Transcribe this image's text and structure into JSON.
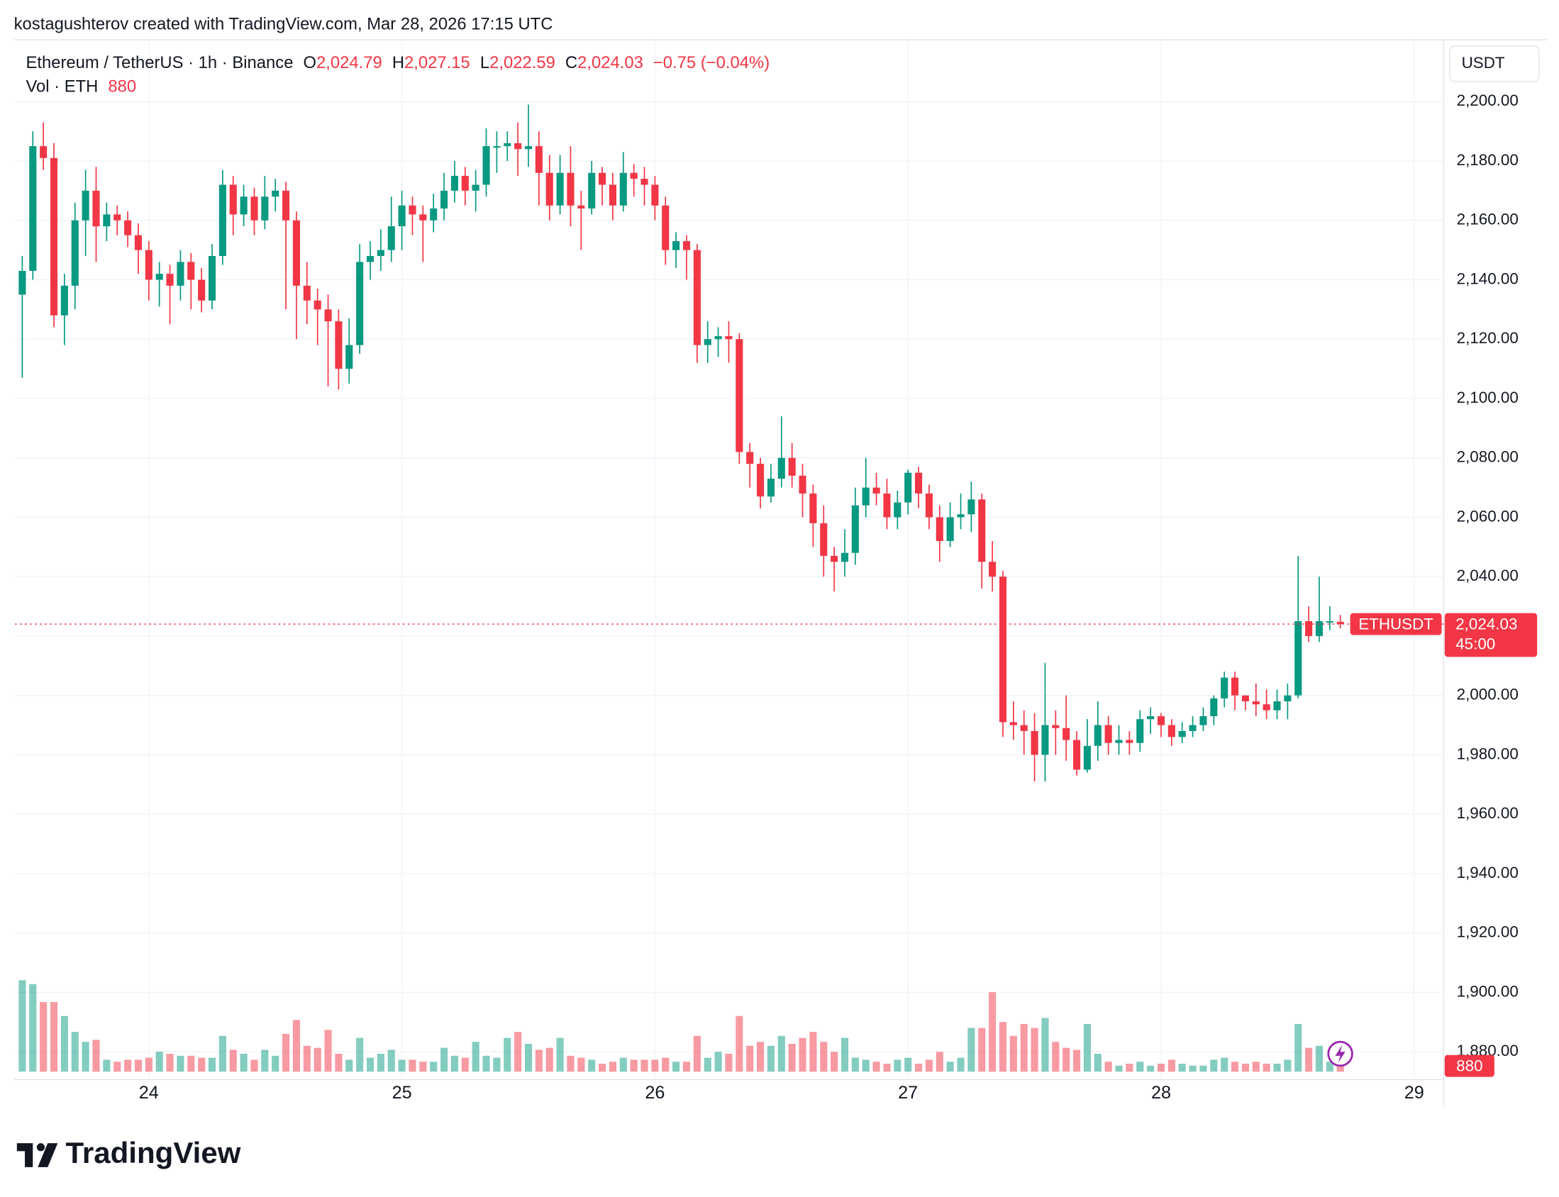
{
  "header": {
    "caption": "kostagushterov created with TradingView.com, Mar 28, 2026 17:15 UTC"
  },
  "chart_data": {
    "type": "candlestick",
    "legend": {
      "symbol": "Ethereum / TetherUS · 1h · Binance",
      "open_label": "O",
      "open": "2,024.79",
      "high_label": "H",
      "high": "2,027.15",
      "low_label": "L",
      "low": "2,022.59",
      "close_label": "C",
      "close": "2,024.03",
      "change": "−0.75 (−0.04%)",
      "volume_title": "Vol · ETH",
      "volume": "880"
    },
    "currency": "USDT",
    "x": [
      0,
      1,
      2,
      3,
      4,
      5,
      6,
      7,
      8,
      9,
      10,
      11,
      12,
      13,
      14,
      15,
      16,
      17,
      18,
      19,
      20,
      21,
      22,
      23,
      24,
      25,
      26,
      27,
      28,
      29,
      30,
      31,
      32,
      33,
      34,
      35,
      36,
      37,
      38,
      39,
      40,
      41,
      42,
      43,
      44,
      45,
      46,
      47,
      48,
      49,
      50,
      51,
      52,
      53,
      54,
      55,
      56,
      57,
      58,
      59,
      60,
      61,
      62,
      63,
      64,
      65,
      66,
      67,
      68,
      69,
      70,
      71,
      72,
      73,
      74,
      75,
      76,
      77,
      78,
      79,
      80,
      81,
      82,
      83,
      84,
      85,
      86,
      87,
      88,
      89,
      90,
      91,
      92,
      93,
      94,
      95,
      96,
      97,
      98,
      99,
      100,
      101,
      102,
      103,
      104,
      105,
      106,
      107,
      108,
      109,
      110,
      111,
      112,
      113,
      114,
      115,
      116,
      117,
      118,
      119,
      120,
      121,
      122,
      123,
      124,
      125
    ],
    "open": [
      2135,
      2143,
      2185,
      2181,
      2128,
      2138,
      2160,
      2170,
      2158,
      2162,
      2160,
      2155,
      2150,
      2140,
      2142,
      2138,
      2146,
      2140,
      2133,
      2148,
      2172,
      2162,
      2168,
      2160,
      2168,
      2170,
      2160,
      2138,
      2133,
      2130,
      2126,
      2110,
      2118,
      2146,
      2148,
      2150,
      2158,
      2165,
      2162,
      2160,
      2164,
      2170,
      2175,
      2170,
      2172,
      2185,
      2185,
      2186,
      2184,
      2185,
      2176,
      2165,
      2176,
      2165,
      2164,
      2176,
      2172,
      2165,
      2176,
      2174,
      2172,
      2165,
      2150,
      2153,
      2150,
      2118,
      2120,
      2121,
      2120,
      2082,
      2078,
      2067,
      2073,
      2080,
      2074,
      2068,
      2058,
      2047,
      2045,
      2048,
      2064,
      2070,
      2068,
      2060,
      2065,
      2075,
      2068,
      2060,
      2052,
      2060,
      2061,
      2066,
      2045,
      2040,
      1991,
      1990,
      1988,
      1980,
      1990,
      1989,
      1985,
      1975,
      1983,
      1990,
      1984,
      1985,
      1984,
      1992,
      1993,
      1990,
      1986,
      1988,
      1990,
      1993,
      1999,
      2006,
      2000,
      1998,
      1997,
      1995,
      1998,
      2000,
      2025,
      2020,
      2025,
      2024.79
    ],
    "high": [
      2148,
      2190,
      2193,
      2186,
      2142,
      2166,
      2177,
      2178,
      2166,
      2165,
      2163,
      2159,
      2153,
      2146,
      2145,
      2150,
      2149,
      2144,
      2152,
      2177,
      2175,
      2172,
      2171,
      2175,
      2174,
      2173,
      2163,
      2146,
      2137,
      2135,
      2130,
      2127,
      2152,
      2153,
      2157,
      2168,
      2170,
      2168,
      2165,
      2169,
      2176,
      2180,
      2178,
      2177,
      2191,
      2190,
      2190,
      2193,
      2199,
      2190,
      2182,
      2182,
      2185,
      2170,
      2180,
      2178,
      2176,
      2183,
      2179,
      2178,
      2175,
      2168,
      2156,
      2155,
      2152,
      2126,
      2124,
      2126,
      2122,
      2085,
      2080,
      2078,
      2094,
      2085,
      2078,
      2071,
      2064,
      2050,
      2056,
      2070,
      2080,
      2075,
      2073,
      2069,
      2076,
      2077,
      2071,
      2064,
      2065,
      2068,
      2072,
      2068,
      2052,
      2042,
      1998,
      1995,
      1994,
      2011,
      1995,
      2000,
      1988,
      1992,
      1998,
      1993,
      1990,
      1988,
      1995,
      1996,
      1994,
      1992,
      1991,
      1993,
      1996,
      2000,
      2008,
      2008,
      2000,
      2004,
      2002,
      2002,
      2004,
      2047,
      2030,
      2040,
      2030,
      2027.15
    ],
    "low": [
      2107,
      2140,
      2177,
      2124,
      2118,
      2130,
      2148,
      2146,
      2153,
      2155,
      2151,
      2142,
      2133,
      2131,
      2125,
      2133,
      2130,
      2129,
      2130,
      2145,
      2155,
      2158,
      2155,
      2157,
      2163,
      2130,
      2120,
      2125,
      2118,
      2104,
      2103,
      2105,
      2115,
      2140,
      2143,
      2146,
      2150,
      2155,
      2146,
      2156,
      2160,
      2166,
      2165,
      2163,
      2168,
      2176,
      2180,
      2175,
      2178,
      2165,
      2160,
      2162,
      2158,
      2150,
      2162,
      2165,
      2160,
      2163,
      2168,
      2165,
      2160,
      2145,
      2144,
      2140,
      2112,
      2112,
      2114,
      2112,
      2078,
      2070,
      2063,
      2065,
      2070,
      2070,
      2060,
      2050,
      2040,
      2035,
      2040,
      2044,
      2060,
      2064,
      2056,
      2056,
      2061,
      2063,
      2056,
      2045,
      2050,
      2056,
      2055,
      2036,
      2035,
      1986,
      1985,
      1980,
      1971,
      1971,
      1980,
      1978,
      1973,
      1974,
      1978,
      1980,
      1980,
      1980,
      1981,
      1987,
      1986,
      1983,
      1984,
      1986,
      1988,
      1990,
      1996,
      1995,
      1995,
      1993,
      1992,
      1992,
      1992,
      1999,
      2018,
      2018,
      2022,
      2022.59
    ],
    "close": [
      2143,
      2185,
      2181,
      2128,
      2138,
      2160,
      2170,
      2158,
      2162,
      2160,
      2155,
      2150,
      2140,
      2142,
      2138,
      2146,
      2140,
      2133,
      2148,
      2172,
      2162,
      2168,
      2160,
      2168,
      2170,
      2160,
      2138,
      2133,
      2130,
      2126,
      2110,
      2118,
      2146,
      2148,
      2150,
      2158,
      2165,
      2162,
      2160,
      2164,
      2170,
      2175,
      2170,
      2172,
      2185,
      2185,
      2186,
      2184,
      2185,
      2176,
      2165,
      2176,
      2165,
      2164,
      2176,
      2172,
      2165,
      2176,
      2174,
      2172,
      2165,
      2150,
      2153,
      2150,
      2118,
      2120,
      2121,
      2120,
      2082,
      2078,
      2067,
      2073,
      2080,
      2074,
      2068,
      2058,
      2047,
      2045,
      2048,
      2064,
      2070,
      2068,
      2060,
      2065,
      2075,
      2068,
      2060,
      2052,
      2060,
      2061,
      2066,
      2045,
      2040,
      1991,
      1990,
      1988,
      1980,
      1990,
      1989,
      1985,
      1975,
      1983,
      1990,
      1984,
      1985,
      1984,
      1992,
      1993,
      1990,
      1986,
      1988,
      1990,
      1993,
      1999,
      2006,
      2000,
      1998,
      1997,
      1995,
      1998,
      2000,
      2025,
      2020,
      2025,
      2025,
      2024.03
    ],
    "volume": [
      8280,
      7920,
      6300,
      6300,
      5040,
      3600,
      2700,
      2880,
      1080,
      900,
      1080,
      1080,
      1260,
      1800,
      1620,
      1440,
      1440,
      1260,
      1260,
      3240,
      1980,
      1620,
      1080,
      1980,
      1440,
      3420,
      4680,
      2340,
      2160,
      3780,
      1620,
      1080,
      3060,
      1260,
      1620,
      1980,
      1080,
      1080,
      900,
      900,
      2160,
      1440,
      1260,
      2700,
      1440,
      1260,
      3060,
      3600,
      2520,
      1980,
      2160,
      3060,
      1440,
      1260,
      1080,
      720,
      900,
      1260,
      1080,
      1080,
      1080,
      1260,
      900,
      900,
      3240,
      1260,
      1800,
      1620,
      5040,
      2340,
      2700,
      2340,
      3240,
      2520,
      3060,
      3600,
      2700,
      1800,
      3060,
      1260,
      1080,
      900,
      720,
      1080,
      1260,
      720,
      1080,
      1800,
      900,
      1260,
      3960,
      3960,
      7200,
      4500,
      3240,
      4320,
      3960,
      4860,
      2700,
      2160,
      1980,
      4320,
      1620,
      900,
      540,
      720,
      900,
      540,
      720,
      1080,
      720,
      540,
      540,
      1080,
      1260,
      900,
      720,
      900,
      720,
      720,
      1080,
      4320,
      2160,
      2340,
      900,
      880
    ],
    "up_color": "#089981",
    "down_color": "#f23645",
    "xlim": [
      -0.7,
      134.8
    ],
    "xticks": [
      {
        "value": 12,
        "label": "24"
      },
      {
        "value": 36,
        "label": "25"
      },
      {
        "value": 60,
        "label": "26"
      },
      {
        "value": 84,
        "label": "27"
      },
      {
        "value": 108,
        "label": "28"
      },
      {
        "value": 132,
        "label": "29"
      }
    ],
    "ylim": [
      1870.6,
      2220.8
    ],
    "yticks": [
      {
        "value": 1880,
        "label": "1,880.00"
      },
      {
        "value": 1900,
        "label": "1,900.00"
      },
      {
        "value": 1920,
        "label": "1,920.00"
      },
      {
        "value": 1940,
        "label": "1,940.00"
      },
      {
        "value": 1960,
        "label": "1,960.00"
      },
      {
        "value": 1980,
        "label": "1,980.00"
      },
      {
        "value": 2000,
        "label": "2,000.00"
      },
      {
        "value": 2020,
        "label": "2,020.00"
      },
      {
        "value": 2040,
        "label": "2,040.00"
      },
      {
        "value": 2060,
        "label": "2,060.00"
      },
      {
        "value": 2080,
        "label": "2,080.00"
      },
      {
        "value": 2100,
        "label": "2,100.00"
      },
      {
        "value": 2120,
        "label": "2,120.00"
      },
      {
        "value": 2140,
        "label": "2,140.00"
      },
      {
        "value": 2160,
        "label": "2,160.00"
      },
      {
        "value": 2180,
        "label": "2,180.00"
      },
      {
        "value": 2200,
        "label": "2,200.00"
      }
    ],
    "grid": true,
    "last_price": {
      "symbol": "ETHUSDT",
      "value": 2024.03,
      "label": "2,024.03",
      "countdown": "45:00"
    },
    "last_volume": {
      "value": 880,
      "label": "880"
    }
  },
  "footer": {
    "logo": "TradingView"
  }
}
